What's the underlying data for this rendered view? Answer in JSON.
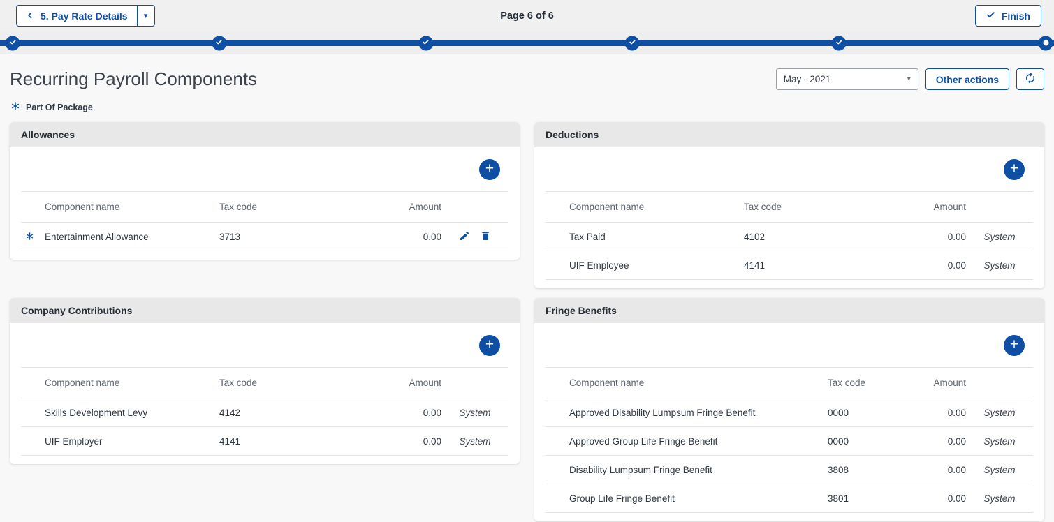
{
  "topbar": {
    "back_button": {
      "label": "5. Pay Rate Details"
    },
    "page_indicator": "Page 6 of 6",
    "finish_button": {
      "label": "Finish"
    }
  },
  "progress": {
    "steps": [
      {
        "state": "done"
      },
      {
        "state": "done"
      },
      {
        "state": "done"
      },
      {
        "state": "done"
      },
      {
        "state": "done"
      },
      {
        "state": "current"
      }
    ]
  },
  "toolbar": {
    "title": "Recurring Payroll Components",
    "period_select": {
      "value": "May - 2021"
    },
    "other_actions_label": "Other actions"
  },
  "legend": {
    "label": "Part Of Package"
  },
  "columns": {
    "name": "Component name",
    "tax": "Tax code",
    "amount": "Amount"
  },
  "colors": {
    "primary_blue": "#0e4fa3",
    "card_header": "#e8e8e9"
  },
  "cards": [
    {
      "title": "Allowances",
      "wide": false,
      "rows": [
        {
          "marker": true,
          "name": "Entertainment Allowance",
          "tax": "3713",
          "amount": "0.00",
          "actions": [
            "edit",
            "delete"
          ]
        }
      ]
    },
    {
      "title": "Deductions",
      "wide": false,
      "rows": [
        {
          "marker": false,
          "name": "Tax Paid",
          "tax": "4102",
          "amount": "0.00",
          "source": "System"
        },
        {
          "marker": false,
          "name": "UIF Employee",
          "tax": "4141",
          "amount": "0.00",
          "source": "System"
        }
      ]
    },
    {
      "title": "Company Contributions",
      "wide": false,
      "rows": [
        {
          "marker": false,
          "name": "Skills Development Levy",
          "tax": "4142",
          "amount": "0.00",
          "source": "System"
        },
        {
          "marker": false,
          "name": "UIF Employer",
          "tax": "4141",
          "amount": "0.00",
          "source": "System"
        }
      ]
    },
    {
      "title": "Fringe Benefits",
      "wide": true,
      "rows": [
        {
          "marker": false,
          "name": "Approved Disability Lumpsum Fringe Benefit",
          "tax": "0000",
          "amount": "0.00",
          "source": "System"
        },
        {
          "marker": false,
          "name": "Approved Group Life Fringe Benefit",
          "tax": "0000",
          "amount": "0.00",
          "source": "System"
        },
        {
          "marker": false,
          "name": "Disability Lumpsum Fringe Benefit",
          "tax": "3808",
          "amount": "0.00",
          "source": "System"
        },
        {
          "marker": false,
          "name": "Group Life Fringe Benefit",
          "tax": "3801",
          "amount": "0.00",
          "source": "System"
        }
      ]
    }
  ]
}
